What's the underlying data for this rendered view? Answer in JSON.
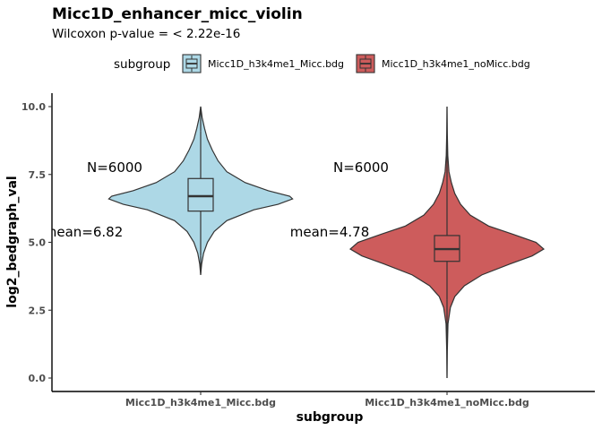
{
  "chart_data": {
    "type": "violin",
    "title": "Micc1D_enhancer_micc_violin",
    "subtitle": "Wilcoxon p-value = < 2.22e-16",
    "xlabel": "subgroup",
    "ylabel": "log2_bedgraph_val",
    "ylim": [
      0,
      10
    ],
    "yticks": [
      "0.0",
      "2.5",
      "5.0",
      "7.5",
      "10.0"
    ],
    "legend": {
      "title": "subgroup",
      "position": "top"
    },
    "grid": false,
    "categories": [
      "Micc1D_h3k4me1_Micc.bdg",
      "Micc1D_h3k4me1_noMicc.bdg"
    ],
    "series": [
      {
        "name": "Micc1D_h3k4me1_Micc.bdg",
        "color": "#add8e6",
        "min": 3.8,
        "q1": 6.15,
        "median": 6.7,
        "q3": 7.35,
        "max": 10.0,
        "whisker_low": 4.5,
        "whisker_high": 9.1,
        "n_label": "N=6000",
        "mean_label": "mean=6.82",
        "density": [
          [
            3.8,
            0.0
          ],
          [
            4.2,
            0.01
          ],
          [
            4.6,
            0.03
          ],
          [
            5.0,
            0.07
          ],
          [
            5.4,
            0.14
          ],
          [
            5.8,
            0.27
          ],
          [
            6.2,
            0.55
          ],
          [
            6.4,
            0.8
          ],
          [
            6.6,
            0.95
          ],
          [
            6.7,
            0.92
          ],
          [
            6.9,
            0.7
          ],
          [
            7.2,
            0.46
          ],
          [
            7.6,
            0.27
          ],
          [
            8.0,
            0.18
          ],
          [
            8.4,
            0.12
          ],
          [
            8.8,
            0.07
          ],
          [
            9.2,
            0.04
          ],
          [
            9.6,
            0.015
          ],
          [
            10.0,
            0.0
          ]
        ]
      },
      {
        "name": "Micc1D_h3k4me1_noMicc.bdg",
        "color": "#cd5c5c",
        "min": 0.0,
        "q1": 4.3,
        "median": 4.75,
        "q3": 5.25,
        "max": 10.0,
        "whisker_low": 2.9,
        "whisker_high": 6.7,
        "n_label": "N=6000",
        "mean_label": "mean=4.78",
        "density": [
          [
            0.0,
            0.0
          ],
          [
            1.0,
            0.003
          ],
          [
            2.0,
            0.01
          ],
          [
            2.6,
            0.035
          ],
          [
            3.0,
            0.08
          ],
          [
            3.4,
            0.18
          ],
          [
            3.8,
            0.36
          ],
          [
            4.2,
            0.65
          ],
          [
            4.5,
            0.88
          ],
          [
            4.75,
            1.0
          ],
          [
            5.0,
            0.92
          ],
          [
            5.3,
            0.68
          ],
          [
            5.6,
            0.43
          ],
          [
            6.0,
            0.24
          ],
          [
            6.4,
            0.14
          ],
          [
            6.8,
            0.08
          ],
          [
            7.2,
            0.045
          ],
          [
            7.6,
            0.02
          ],
          [
            8.2,
            0.008
          ],
          [
            9.0,
            0.003
          ],
          [
            10.0,
            0.0
          ]
        ]
      }
    ]
  }
}
